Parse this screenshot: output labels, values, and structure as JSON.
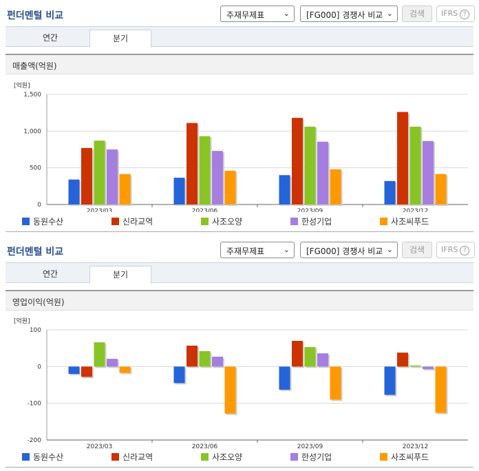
{
  "panels": [
    {
      "title": "펀더멘털 비교",
      "select1": "주재무제표",
      "select2": "[FG000] 경쟁사 비교",
      "search_label": "검색",
      "ifrs_label": "IFRS",
      "tabs": [
        "연간",
        "분기"
      ],
      "subtitle": "매출액(억원)"
    },
    {
      "title": "펀더멘털 비교",
      "select1": "주재무제표",
      "select2": "[FG000] 경쟁사 비교",
      "search_label": "검색",
      "ifrs_label": "IFRS",
      "tabs": [
        "연간",
        "분기"
      ],
      "subtitle": "영업이익(억원)"
    }
  ],
  "colors": [
    "#2563d9",
    "#cc3300",
    "#88c425",
    "#a57ee0",
    "#ff9900"
  ],
  "chart_data": [
    {
      "type": "bar",
      "unit_label": "[억원]",
      "categories": [
        "2023/03",
        "2023/06",
        "2023/09",
        "2023/12"
      ],
      "ylim": [
        0,
        1500
      ],
      "yticks": [
        0,
        500,
        1000,
        1500
      ],
      "ytick_labels": [
        "0",
        "500",
        "1,000",
        "1,500"
      ],
      "series": [
        {
          "name": "동원수산",
          "values": [
            340,
            365,
            400,
            320
          ]
        },
        {
          "name": "신라교역",
          "values": [
            770,
            1110,
            1180,
            1260
          ]
        },
        {
          "name": "사조오양",
          "values": [
            870,
            930,
            1060,
            1060
          ]
        },
        {
          "name": "한성기업",
          "values": [
            750,
            730,
            855,
            865
          ]
        },
        {
          "name": "사조씨푸드",
          "values": [
            415,
            460,
            480,
            415
          ]
        }
      ]
    },
    {
      "type": "bar",
      "unit_label": "[억원]",
      "categories": [
        "2023/03",
        "2023/06",
        "2023/09",
        "2023/12"
      ],
      "ylim": [
        -200,
        100
      ],
      "yticks": [
        -200,
        -100,
        0,
        100
      ],
      "ytick_labels": [
        "-200",
        "-100",
        "0",
        "100"
      ],
      "series": [
        {
          "name": "동원수산",
          "values": [
            -20,
            -45,
            -63,
            -77
          ]
        },
        {
          "name": "신라교역",
          "values": [
            -28,
            57,
            70,
            38
          ]
        },
        {
          "name": "사조오양",
          "values": [
            66,
            42,
            53,
            3
          ]
        },
        {
          "name": "한성기업",
          "values": [
            21,
            27,
            36,
            -7
          ]
        },
        {
          "name": "사조씨푸드",
          "values": [
            -17,
            -128,
            -90,
            -126
          ]
        }
      ]
    }
  ]
}
